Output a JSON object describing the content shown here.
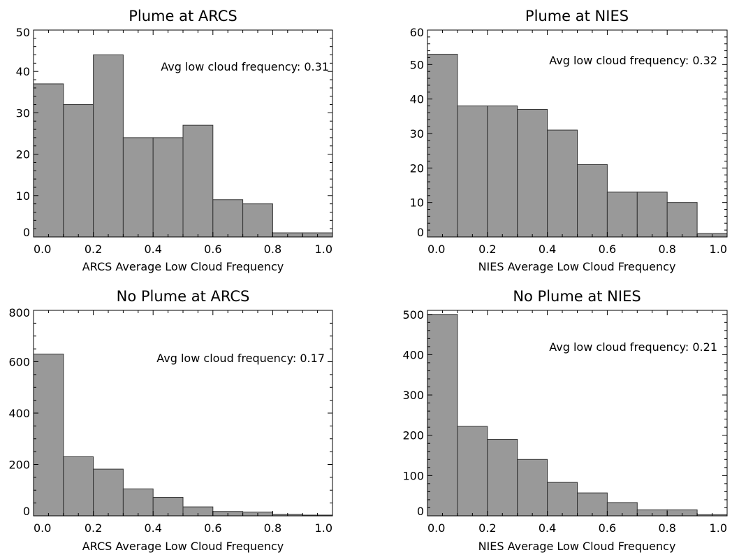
{
  "chart_data": [
    {
      "type": "bar",
      "title": "Plume at ARCS",
      "xlabel": "ARCS Average Low Cloud Frequency",
      "ylabel": "",
      "annotation": "Avg low cloud frequency: 0.31",
      "categories": [
        "0.0-0.1",
        "0.1-0.2",
        "0.2-0.3",
        "0.3-0.4",
        "0.4-0.5",
        "0.5-0.6",
        "0.6-0.7",
        "0.7-0.8",
        "0.8-0.9",
        "0.9-1.0"
      ],
      "bin_edges": [
        0.0,
        0.1,
        0.2,
        0.3,
        0.4,
        0.5,
        0.6,
        0.7,
        0.8,
        0.9,
        1.0
      ],
      "values": [
        37,
        32,
        44,
        24,
        24,
        27,
        9,
        8,
        1,
        1
      ],
      "xlim": [
        0,
        1
      ],
      "ylim": [
        0,
        50
      ],
      "xticks": [
        "0.0",
        "0.2",
        "0.4",
        "0.6",
        "0.8",
        "1.0"
      ],
      "yticks": [
        "0",
        "10",
        "20",
        "30",
        "40",
        "50"
      ],
      "bar_color": "#999999",
      "grid": false
    },
    {
      "type": "bar",
      "title": "Plume at NIES",
      "xlabel": "NIES Average Low Cloud Frequency",
      "ylabel": "",
      "annotation": "Avg low cloud frequency: 0.32",
      "categories": [
        "0.0-0.1",
        "0.1-0.2",
        "0.2-0.3",
        "0.3-0.4",
        "0.4-0.5",
        "0.5-0.6",
        "0.6-0.7",
        "0.7-0.8",
        "0.8-0.9",
        "0.9-1.0"
      ],
      "bin_edges": [
        0.0,
        0.1,
        0.2,
        0.3,
        0.4,
        0.5,
        0.6,
        0.7,
        0.8,
        0.9,
        1.0
      ],
      "values": [
        53,
        38,
        38,
        37,
        31,
        21,
        13,
        13,
        10,
        1
      ],
      "xlim": [
        0,
        1
      ],
      "ylim": [
        0,
        60
      ],
      "xticks": [
        "0.0",
        "0.2",
        "0.4",
        "0.6",
        "0.8",
        "1.0"
      ],
      "yticks": [
        "0",
        "10",
        "20",
        "30",
        "40",
        "50",
        "60"
      ],
      "bar_color": "#999999",
      "grid": false
    },
    {
      "type": "bar",
      "title": "No Plume at ARCS",
      "xlabel": "ARCS Average Low Cloud Frequency",
      "ylabel": "",
      "annotation": "Avg low cloud frequency: 0.17",
      "categories": [
        "0.0-0.1",
        "0.1-0.2",
        "0.2-0.3",
        "0.3-0.4",
        "0.4-0.5",
        "0.5-0.6",
        "0.6-0.7",
        "0.7-0.8",
        "0.8-0.9",
        "0.9-1.0"
      ],
      "bin_edges": [
        0.0,
        0.1,
        0.2,
        0.3,
        0.4,
        0.5,
        0.6,
        0.7,
        0.8,
        0.9,
        1.0
      ],
      "values": [
        630,
        230,
        182,
        105,
        72,
        35,
        17,
        15,
        6,
        3
      ],
      "xlim": [
        0,
        1
      ],
      "ylim": [
        0,
        800
      ],
      "xticks": [
        "0.0",
        "0.2",
        "0.4",
        "0.6",
        "0.8",
        "1.0"
      ],
      "yticks": [
        "0",
        "200",
        "400",
        "600",
        "800"
      ],
      "bar_color": "#999999",
      "grid": false
    },
    {
      "type": "bar",
      "title": "No Plume at NIES",
      "xlabel": "NIES Average Low Cloud Frequency",
      "ylabel": "",
      "annotation": "Avg low cloud frequency: 0.21",
      "categories": [
        "0.0-0.1",
        "0.1-0.2",
        "0.2-0.3",
        "0.3-0.4",
        "0.4-0.5",
        "0.5-0.6",
        "0.6-0.7",
        "0.7-0.8",
        "0.8-0.9",
        "0.9-1.0"
      ],
      "bin_edges": [
        0.0,
        0.1,
        0.2,
        0.3,
        0.4,
        0.5,
        0.6,
        0.7,
        0.8,
        0.9,
        1.0
      ],
      "values": [
        500,
        222,
        190,
        140,
        83,
        57,
        33,
        15,
        15,
        3
      ],
      "xlim": [
        0,
        1
      ],
      "ylim": [
        0,
        510
      ],
      "xticks": [
        "0.0",
        "0.2",
        "0.4",
        "0.6",
        "0.8",
        "1.0"
      ],
      "yticks": [
        "0",
        "100",
        "200",
        "300",
        "400",
        "500"
      ],
      "bar_color": "#999999",
      "grid": false
    }
  ]
}
